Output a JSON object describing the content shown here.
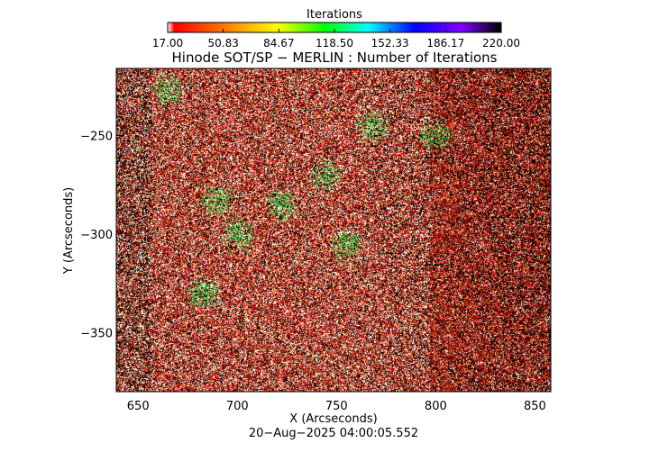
{
  "chart_data": {
    "type": "heatmap",
    "title": "Hinode SOT/SP − MERLIN : Number of Iterations",
    "xlabel": "X (Arcseconds)",
    "ylabel": "Y (Arcseconds)",
    "xlim": [
      639,
      858
    ],
    "ylim": [
      -380,
      -216
    ],
    "x_ticks": [
      650,
      700,
      750,
      800,
      850
    ],
    "y_ticks": [
      -250,
      -300,
      -350
    ],
    "colorbar": {
      "title": "Iterations",
      "range": [
        17.0,
        220.0
      ],
      "ticks": [
        "17.00",
        "50.83",
        "84.67",
        "118.50",
        "152.33",
        "186.17",
        "220.00"
      ],
      "colors": [
        "#ffffff",
        "#ff0000",
        "#ff8000",
        "#ffff00",
        "#00ff00",
        "#00ffff",
        "#0000ff",
        "#8000ff",
        "#000000"
      ]
    },
    "dominant_colors": [
      "#e8291e",
      "#000000",
      "#ffffff",
      "#e8e6a0",
      "#2fd43c"
    ],
    "green_regions": [
      {
        "x": 768,
        "y": -245
      },
      {
        "x": 722,
        "y": -285
      },
      {
        "x": 745,
        "y": -270
      },
      {
        "x": 700,
        "y": -300
      },
      {
        "x": 755,
        "y": -305
      },
      {
        "x": 690,
        "y": -283
      },
      {
        "x": 800,
        "y": -250
      },
      {
        "x": 683,
        "y": -330
      },
      {
        "x": 665,
        "y": -226
      }
    ],
    "footer": "20−Aug−2025 04:00:05.552"
  }
}
